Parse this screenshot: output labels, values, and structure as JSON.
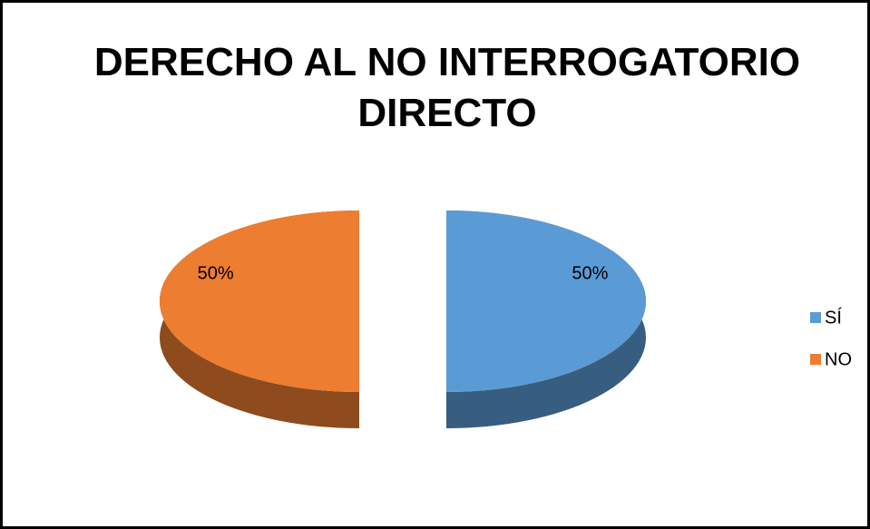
{
  "chart_data": {
    "type": "pie",
    "title": "DERECHO AL NO INTERROGATORIO DIRECTO",
    "categories": [
      "SÍ",
      "NO"
    ],
    "values": [
      50,
      50
    ],
    "value_labels": [
      "50%",
      "50%"
    ],
    "colors": [
      "#5b9bd5",
      "#ed7d31"
    ],
    "legend": "right"
  }
}
